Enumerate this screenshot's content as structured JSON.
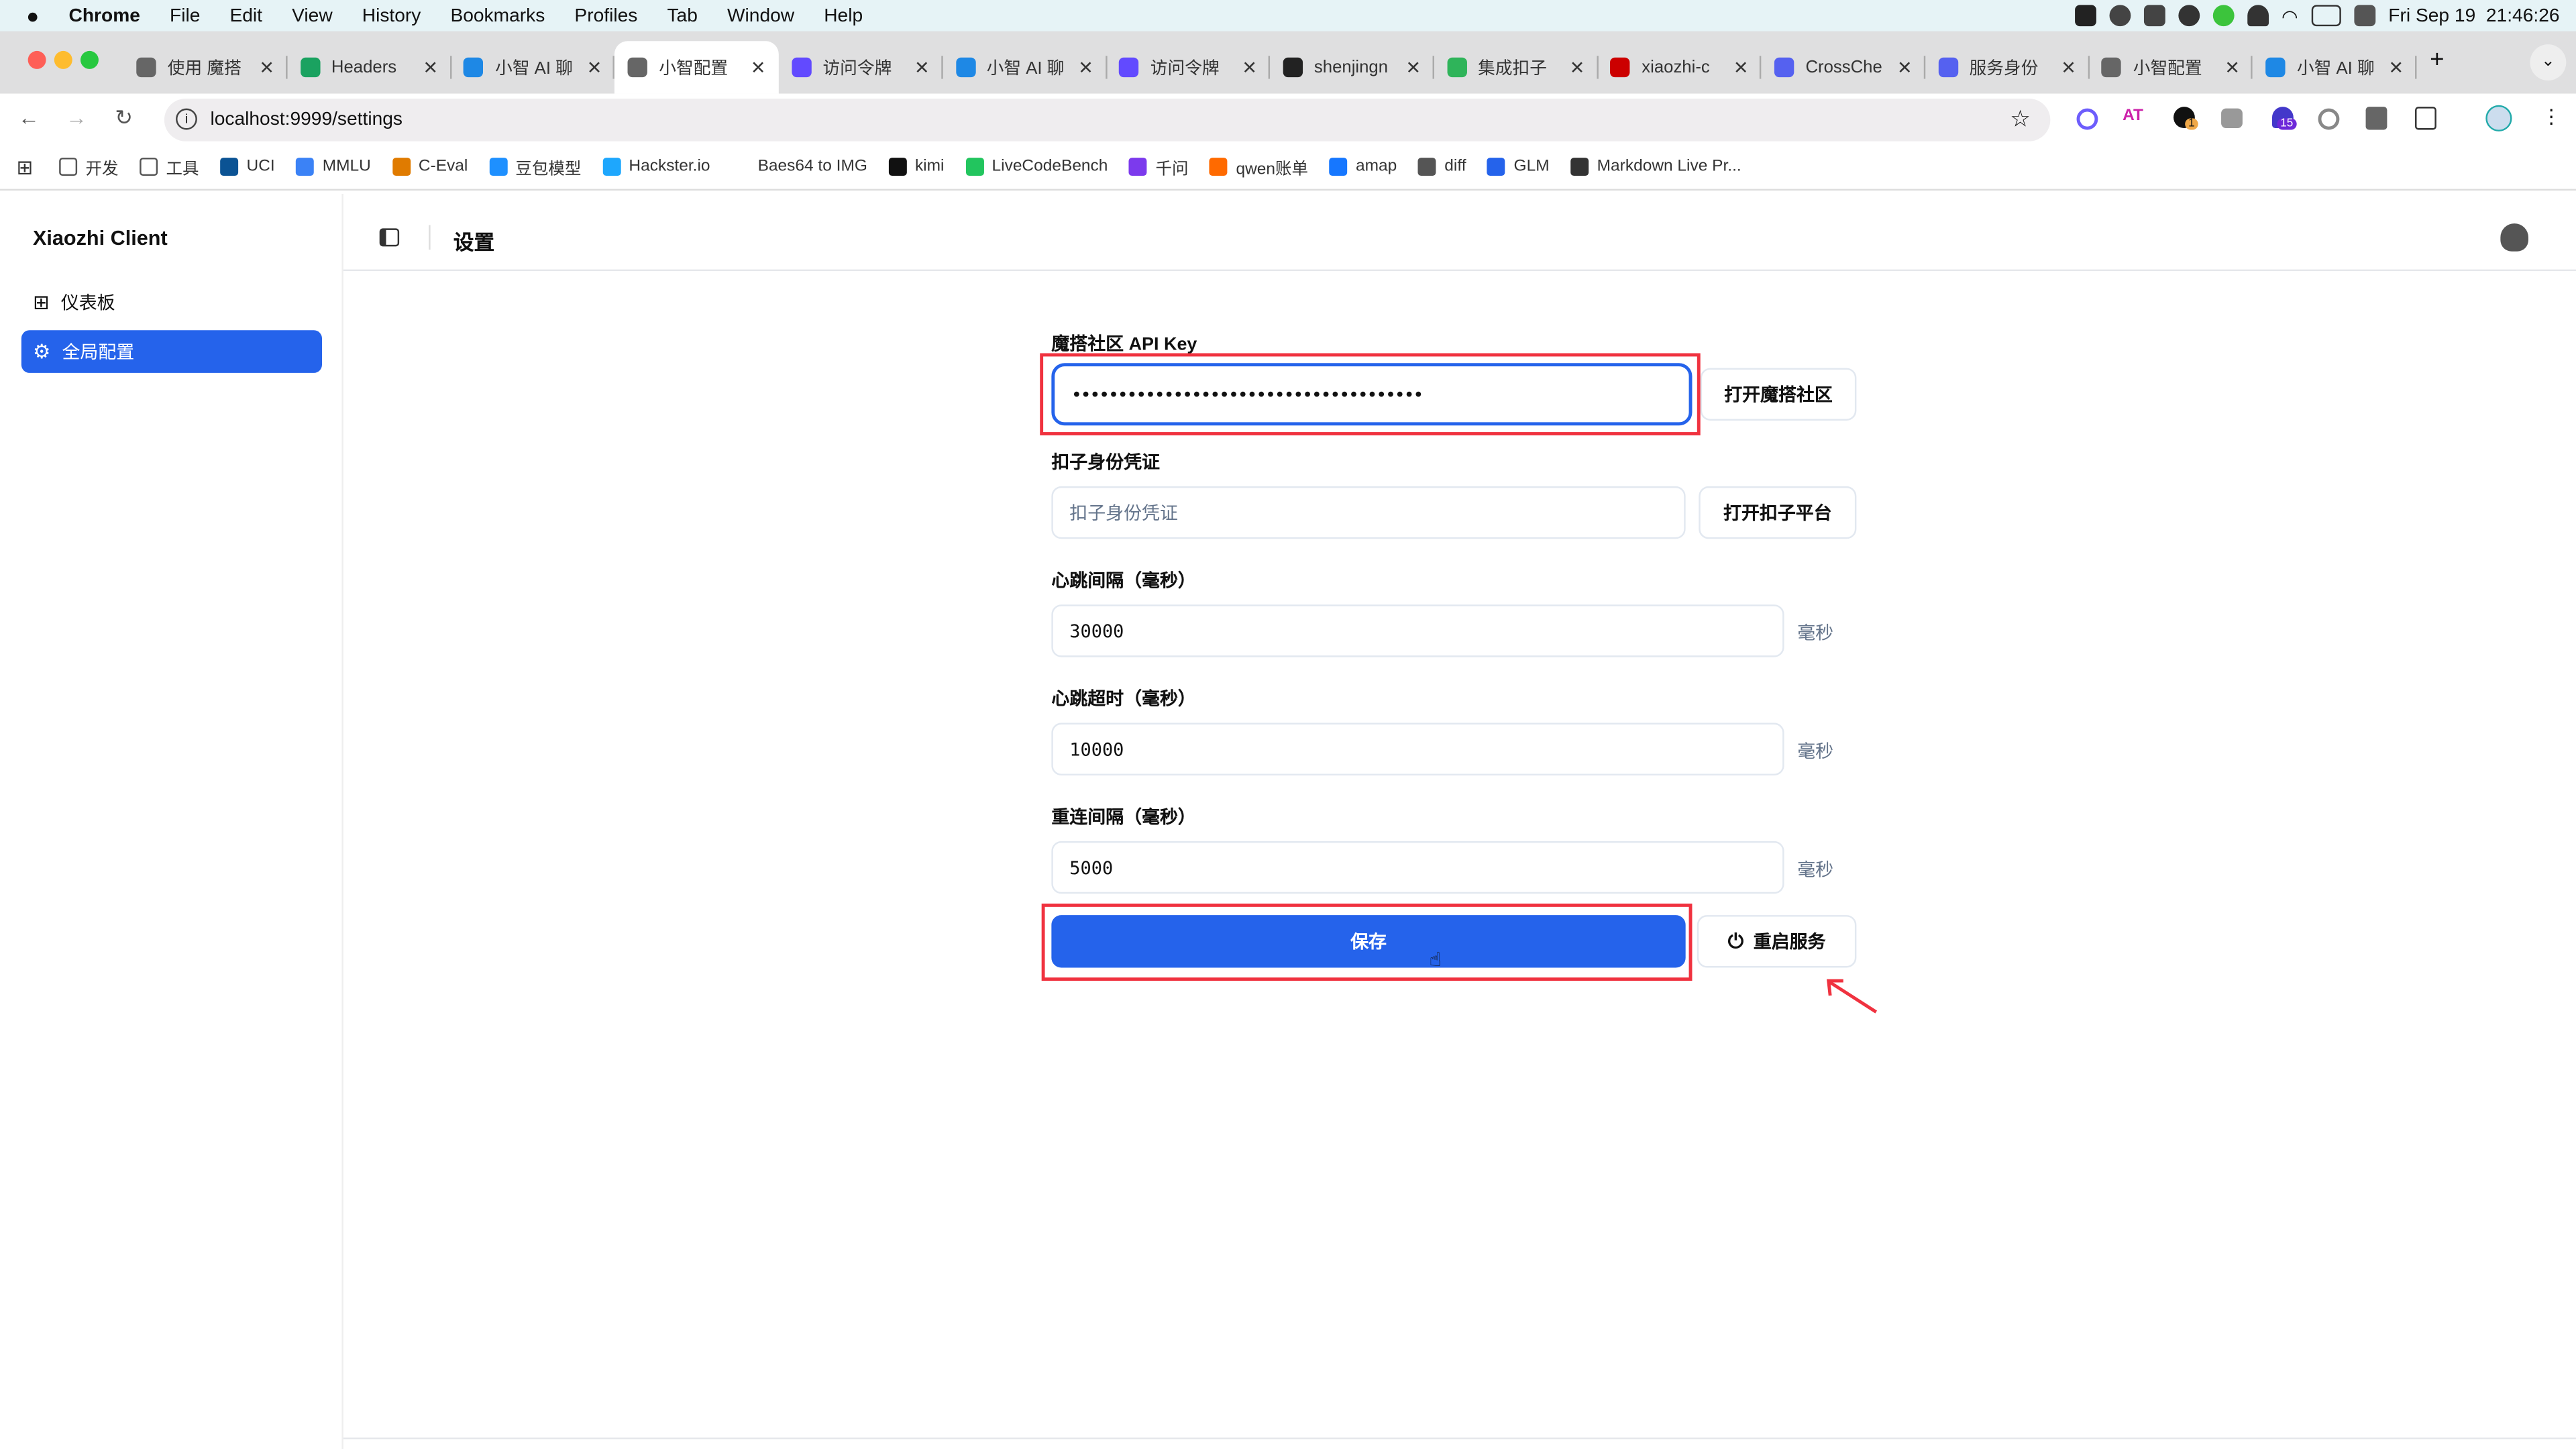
{
  "menubar": {
    "app": "Chrome",
    "items": [
      "File",
      "Edit",
      "View",
      "History",
      "Bookmarks",
      "Profiles",
      "Tab",
      "Window",
      "Help"
    ],
    "datetime": "Fri Sep 19  21:46:26"
  },
  "tabs": [
    {
      "title": "使用 魔搭",
      "color": "#666"
    },
    {
      "title": "Headers",
      "color": "#1aa260"
    },
    {
      "title": "小智 AI 聊",
      "color": "#1e88e5"
    },
    {
      "title": "小智配置",
      "color": "#666",
      "active": true
    },
    {
      "title": "访问令牌",
      "color": "#624aff"
    },
    {
      "title": "小智 AI 聊",
      "color": "#1e88e5"
    },
    {
      "title": "访问令牌",
      "color": "#624aff"
    },
    {
      "title": "shenjingn",
      "color": "#222"
    },
    {
      "title": "集成扣子",
      "color": "#2fb45a"
    },
    {
      "title": "xiaozhi-c",
      "color": "#cc0000"
    },
    {
      "title": "CrossChe",
      "color": "#5561f0"
    },
    {
      "title": "服务身份",
      "color": "#5561f0"
    },
    {
      "title": "小智配置",
      "color": "#666"
    },
    {
      "title": "小智 AI 聊",
      "color": "#1e88e5"
    }
  ],
  "toolbar": {
    "url": "localhost:9999/settings",
    "badges": [
      "1",
      "15"
    ]
  },
  "bookmarks": [
    {
      "label": "开发",
      "color": "#888"
    },
    {
      "label": "工具",
      "color": "#888"
    },
    {
      "label": "UCI",
      "color": "#0b5394"
    },
    {
      "label": "MMLU",
      "color": "#3b82f6"
    },
    {
      "label": "C-Eval",
      "color": "#e07b00"
    },
    {
      "label": "豆包模型",
      "color": "#1e90ff"
    },
    {
      "label": "Hackster.io",
      "color": "#1ea7fd"
    },
    {
      "label": "Baes64 to IMG",
      "color": "#fff"
    },
    {
      "label": "kimi",
      "color": "#111"
    },
    {
      "label": "LiveCodeBench",
      "color": "#22c55e"
    },
    {
      "label": "千问",
      "color": "#7c3aed"
    },
    {
      "label": "qwen账单",
      "color": "#ff6a00"
    },
    {
      "label": "amap",
      "color": "#1677ff"
    },
    {
      "label": "diff",
      "color": "#555"
    },
    {
      "label": "GLM",
      "color": "#2563eb"
    },
    {
      "label": "Markdown Live Pr...",
      "color": "#333"
    }
  ],
  "sidebar": {
    "title": "Xiaozhi Client",
    "items": [
      {
        "label": "仪表板"
      },
      {
        "label": "全局配置",
        "active": true
      }
    ]
  },
  "header": {
    "title": "设置"
  },
  "form": {
    "api_key": {
      "label": "魔搭社区 API Key",
      "value": "••••••••••••••••••••••••••••••••••••••",
      "button": "打开魔搭社区"
    },
    "coze": {
      "label": "扣子身份凭证",
      "placeholder": "扣子身份凭证",
      "button": "打开扣子平台"
    },
    "heartbeat_interval": {
      "label": "心跳间隔（毫秒）",
      "value": "30000",
      "unit": "毫秒"
    },
    "heartbeat_timeout": {
      "label": "心跳超时（毫秒）",
      "value": "10000",
      "unit": "毫秒"
    },
    "reconnect_interval": {
      "label": "重连间隔（毫秒）",
      "value": "5000",
      "unit": "毫秒"
    },
    "save": "保存",
    "restart": "重启服务"
  },
  "colors": {
    "accent": "#2563eb",
    "annotation": "#f0323f"
  }
}
